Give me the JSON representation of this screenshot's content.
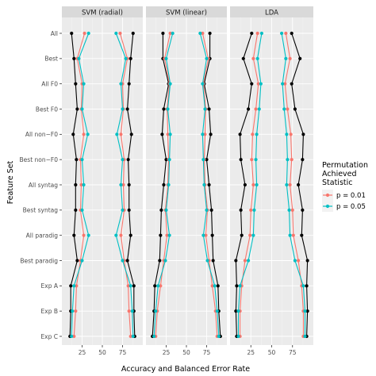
{
  "chart_data": {
    "type": "line",
    "panels": [
      "SVM (radial)",
      "SVM (linear)",
      "LDA"
    ],
    "categories": [
      "All",
      "Best",
      "All F0",
      "Best F0",
      "All non−F0",
      "Best non−F0",
      "All syntag",
      "Best syntag",
      "All paradig",
      "Best paradig",
      "Exp A",
      "Exp B",
      "Exp C"
    ],
    "xlim": [
      0,
      100
    ],
    "xticks": [
      "25",
      "50",
      "75"
    ],
    "xtick_values": [
      25,
      50,
      75
    ],
    "xlabel": "Accuracy and Balanced Error Rate",
    "ylabel": "Feature Set",
    "grid": true,
    "legend": {
      "position": "right",
      "title_lines": [
        "Permutation",
        "Achieved",
        "Statistic"
      ],
      "entries": [
        {
          "label": "p = 0.01",
          "color": "#f8766d"
        },
        {
          "label": "p = 0.05",
          "color": "#00bfc4"
        }
      ]
    },
    "colors": {
      "observed": "#000000",
      "p01": "#f8766d",
      "p05": "#00bfc4"
    },
    "series": [
      {
        "panel": 0,
        "color": "#000000",
        "values": [
          12,
          15,
          17,
          19,
          14,
          18,
          17,
          17,
          15,
          19,
          11,
          11,
          10
        ]
      },
      {
        "panel": 0,
        "color": "#f8766d",
        "values": [
          28,
          19,
          25,
          24,
          27,
          23,
          24,
          23,
          27,
          23,
          18,
          17,
          15
        ]
      },
      {
        "panel": 0,
        "color": "#00bfc4",
        "values": [
          33,
          21,
          27,
          25,
          32,
          25,
          27,
          25,
          33,
          25,
          15,
          13,
          12
        ]
      },
      {
        "panel": 0,
        "color": "#000000",
        "values": [
          88,
          85,
          83,
          81,
          86,
          82,
          83,
          83,
          85,
          81,
          89,
          89,
          90
        ]
      },
      {
        "panel": 0,
        "color": "#f8766d",
        "values": [
          72,
          81,
          75,
          76,
          73,
          77,
          76,
          77,
          73,
          77,
          82,
          83,
          85
        ]
      },
      {
        "panel": 0,
        "color": "#00bfc4",
        "values": [
          67,
          79,
          73,
          75,
          68,
          75,
          73,
          75,
          67,
          75,
          85,
          87,
          88
        ]
      },
      {
        "panel": 1,
        "color": "#000000",
        "values": [
          21,
          21,
          28,
          22,
          20,
          25,
          22,
          19,
          18,
          17,
          11,
          10,
          8
        ]
      },
      {
        "panel": 1,
        "color": "#f8766d",
        "values": [
          30,
          23,
          29,
          26,
          27,
          28,
          27,
          24,
          26,
          22,
          18,
          14,
          12
        ]
      },
      {
        "panel": 1,
        "color": "#00bfc4",
        "values": [
          33,
          25,
          30,
          27,
          30,
          29,
          28,
          25,
          29,
          24,
          15,
          12,
          10
        ]
      },
      {
        "panel": 1,
        "color": "#000000",
        "values": [
          79,
          79,
          72,
          78,
          80,
          75,
          78,
          81,
          82,
          83,
          89,
          90,
          92
        ]
      },
      {
        "panel": 1,
        "color": "#f8766d",
        "values": [
          70,
          77,
          71,
          74,
          73,
          72,
          73,
          76,
          74,
          78,
          82,
          86,
          88
        ]
      },
      {
        "panel": 1,
        "color": "#00bfc4",
        "values": [
          67,
          75,
          70,
          73,
          70,
          71,
          72,
          75,
          71,
          76,
          85,
          88,
          90
        ]
      },
      {
        "panel": 2,
        "color": "#000000",
        "values": [
          26,
          16,
          26,
          22,
          12,
          13,
          18,
          13,
          14,
          7,
          8,
          7,
          8
        ]
      },
      {
        "panel": 2,
        "color": "#f8766d",
        "values": [
          33,
          28,
          34,
          31,
          27,
          26,
          28,
          25,
          24,
          18,
          14,
          12,
          12
        ]
      },
      {
        "panel": 2,
        "color": "#00bfc4",
        "values": [
          38,
          33,
          37,
          35,
          32,
          31,
          32,
          29,
          28,
          22,
          12,
          10,
          10
        ]
      },
      {
        "panel": 2,
        "color": "#000000",
        "values": [
          74,
          84,
          74,
          78,
          88,
          87,
          82,
          87,
          86,
          93,
          92,
          93,
          92
        ]
      },
      {
        "panel": 2,
        "color": "#f8766d",
        "values": [
          67,
          72,
          66,
          69,
          73,
          74,
          72,
          75,
          76,
          82,
          86,
          88,
          88
        ]
      },
      {
        "panel": 2,
        "color": "#00bfc4",
        "values": [
          62,
          67,
          63,
          65,
          68,
          69,
          68,
          71,
          72,
          78,
          88,
          90,
          90
        ]
      }
    ]
  }
}
